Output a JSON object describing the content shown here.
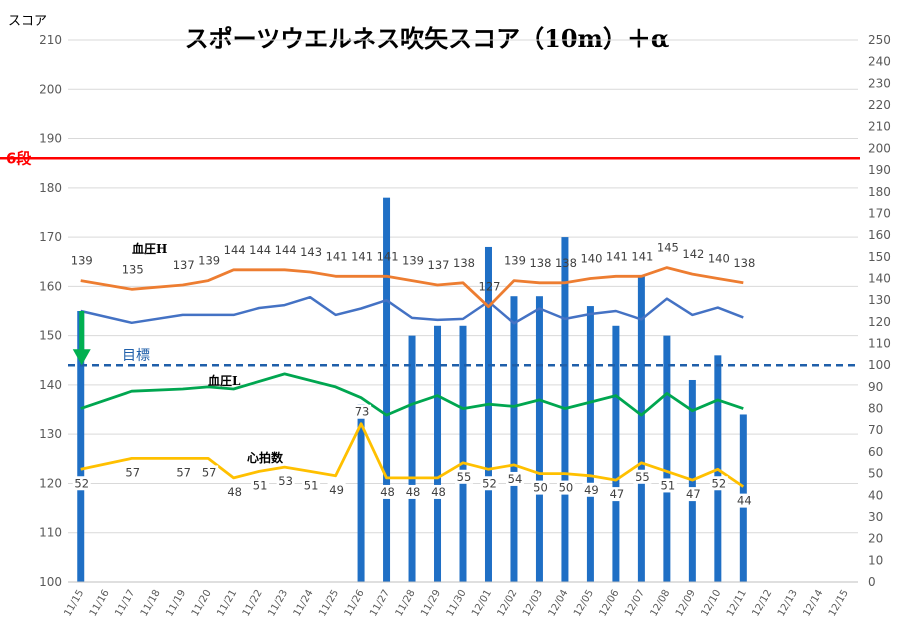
{
  "chart_data": {
    "type": "bar+line",
    "title": "スポーツウエルネス吹矢スコア（10m）＋α",
    "y_left_label": "スコア",
    "y_left_range": [
      100,
      210
    ],
    "y_left_ticks": [
      100,
      110,
      120,
      130,
      140,
      150,
      160,
      170,
      180,
      190,
      200,
      210
    ],
    "y_right_range": [
      0,
      250
    ],
    "y_right_ticks": [
      0,
      10,
      20,
      30,
      40,
      50,
      60,
      70,
      80,
      90,
      100,
      110,
      120,
      130,
      140,
      150,
      160,
      170,
      180,
      190,
      200,
      210,
      220,
      230,
      240,
      250
    ],
    "categories": [
      "11/15",
      "11/16",
      "11/17",
      "11/18",
      "11/19",
      "11/20",
      "11/21",
      "11/22",
      "11/23",
      "11/24",
      "11/25",
      "11/26",
      "11/27",
      "11/28",
      "11/29",
      "11/30",
      "12/01",
      "12/02",
      "12/03",
      "12/04",
      "12/05",
      "12/06",
      "12/07",
      "12/08",
      "12/09",
      "12/10",
      "12/11",
      "12/12",
      "12/13",
      "12/14",
      "12/15"
    ],
    "reference_lines": [
      {
        "label": "6段",
        "y": 186,
        "color": "#ff0000"
      },
      {
        "label": "目標",
        "y": 144,
        "color": "#1f5faa"
      }
    ],
    "annotation_arrow": {
      "x": "11/15",
      "from": 155,
      "to": 144,
      "color": "#00b050"
    },
    "score_bars": {
      "axis": "left",
      "color": "#1f6fc5",
      "values": [
        155,
        null,
        null,
        null,
        null,
        null,
        null,
        null,
        null,
        null,
        null,
        136,
        178,
        150,
        152,
        152,
        168,
        158,
        158,
        170,
        156,
        152,
        162,
        150,
        141,
        146,
        134,
        null,
        null,
        null,
        null
      ]
    },
    "score_line": {
      "axis": "left",
      "color": "#4472c4",
      "values": [
        155,
        null,
        152.6,
        null,
        154.2,
        null,
        154.2,
        155.6,
        156.2,
        157.8,
        154.2,
        155.5,
        157.2,
        153.6,
        153.2,
        153.4,
        156.9,
        152.5,
        155.5,
        153.4,
        154.4,
        155.0,
        153.3,
        157.5,
        154.2,
        155.7,
        153.7,
        null,
        null,
        null,
        null
      ]
    },
    "series": [
      {
        "name": "血圧H",
        "axis": "right",
        "color": "#ed7d31",
        "values": [
          139,
          null,
          135,
          null,
          137,
          139,
          144,
          144,
          144,
          143,
          141,
          141,
          141,
          139,
          137,
          138,
          127,
          139,
          138,
          138,
          140,
          141,
          141,
          145,
          142,
          140,
          138,
          null,
          null,
          null,
          null
        ]
      },
      {
        "name": "血圧L",
        "axis": "right",
        "color": "#00a650",
        "values": [
          80,
          null,
          88,
          null,
          89,
          90,
          89,
          null,
          96,
          null,
          90,
          85,
          77,
          82,
          86,
          80,
          82,
          81,
          84,
          80,
          83,
          86,
          77,
          87,
          79,
          84,
          80,
          null,
          null,
          null,
          null
        ]
      },
      {
        "name": "心拍数",
        "axis": "right",
        "color": "#ffc000",
        "values": [
          52,
          null,
          57,
          null,
          57,
          57,
          48,
          51,
          53,
          51,
          49,
          73,
          48,
          48,
          48,
          55,
          52,
          54,
          50,
          50,
          49,
          47,
          55,
          51,
          47,
          52,
          44,
          null,
          null,
          null,
          null
        ]
      }
    ]
  }
}
